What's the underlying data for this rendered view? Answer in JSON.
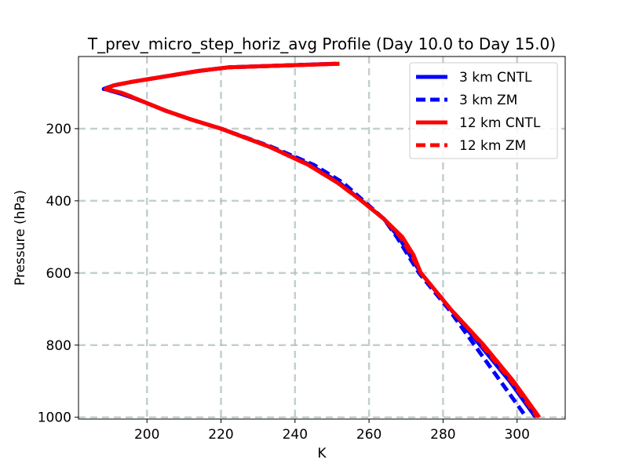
{
  "chart_data": {
    "type": "line",
    "title": "T_prev_micro_step_horiz_avg Profile (Day 10.0 to Day 15.0)",
    "xlabel": "K",
    "ylabel": "Pressure (hPa)",
    "xlim": [
      181.5,
      313
    ],
    "ylim": [
      1005,
      0
    ],
    "grid": true,
    "legend_position": "top-right",
    "xticks": [
      200,
      220,
      240,
      260,
      280,
      300
    ],
    "yticks": [
      200,
      400,
      600,
      800,
      1000
    ],
    "pressure": [
      20,
      30,
      40,
      50,
      60,
      70,
      80,
      90,
      100,
      110,
      125,
      150,
      175,
      200,
      250,
      300,
      350,
      400,
      450,
      500,
      550,
      600,
      650,
      700,
      750,
      800,
      850,
      900,
      950,
      1000
    ],
    "series": [
      {
        "name": "3 km CNTL",
        "color": "#0000ff",
        "style": "solid",
        "values": [
          251,
          222,
          214,
          208,
          202,
          196,
          191,
          188.5,
          192,
          195,
          199,
          205,
          212,
          220,
          233,
          244,
          252,
          258,
          264,
          268,
          271,
          274,
          278,
          282,
          286,
          290,
          294,
          298,
          301.5,
          305
        ]
      },
      {
        "name": "3 km ZM",
        "color": "#0000ff",
        "style": "dashed",
        "values": [
          251,
          222,
          214,
          208,
          202,
          196,
          191,
          188.3,
          192,
          195,
          199,
          205,
          212,
          220,
          233.5,
          245,
          253,
          258.5,
          264,
          267.5,
          270.5,
          273.5,
          277.5,
          281.5,
          285,
          288.5,
          292,
          295.5,
          299,
          302.5
        ]
      },
      {
        "name": "12 km CNTL",
        "color": "#ff0000",
        "style": "solid",
        "values": [
          252,
          222,
          214,
          208,
          202,
          196,
          191,
          188.8,
          193,
          195.5,
          199,
          205,
          212,
          220,
          233,
          243.5,
          251.5,
          258,
          264,
          269,
          272,
          274,
          278,
          282,
          286.5,
          291,
          295,
          299,
          302.5,
          306
        ]
      },
      {
        "name": "12 km ZM",
        "color": "#ff0000",
        "style": "dashed",
        "values": [
          252,
          222,
          214,
          208,
          202,
          196,
          191,
          188.8,
          193,
          195.5,
          199,
          205,
          212,
          220,
          233,
          243.5,
          251.5,
          258,
          264,
          268.5,
          271.5,
          274,
          278,
          282,
          286.5,
          290.5,
          294.5,
          298.5,
          302,
          305.5
        ]
      }
    ]
  }
}
